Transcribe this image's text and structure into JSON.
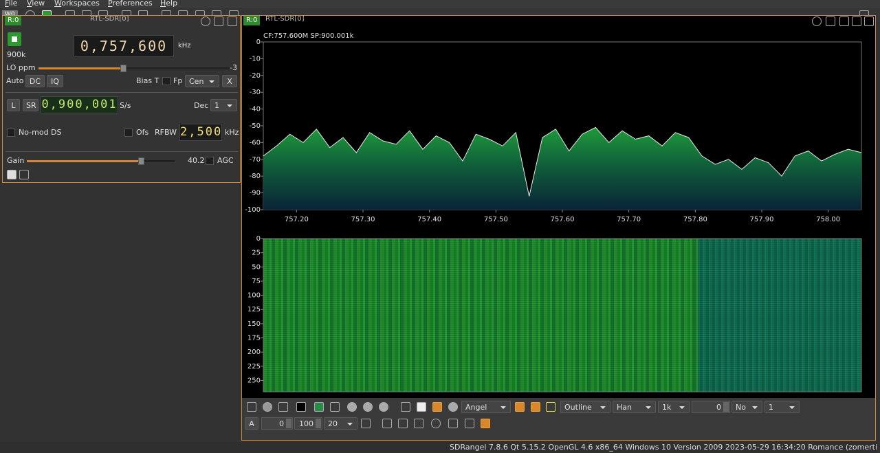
{
  "menu": [
    "File",
    "View",
    "Workspaces",
    "Preferences",
    "Help"
  ],
  "toolbar": {
    "workspace": "W0"
  },
  "device_panel": {
    "tab": "R:0",
    "title": "RTL-SDR[0]",
    "center_frequency": "0,757,600",
    "frequency_unit": "kHz",
    "sample_rate_short": "900k",
    "lo_ppm_label": "LO ppm",
    "lo_ppm": -3,
    "auto": "Auto",
    "dc": "DC",
    "iq": "IQ",
    "bias_t": "Bias T",
    "fp": "Fp",
    "fp_position": "Cen",
    "close": "X",
    "low_sr": "L",
    "sr": "SR",
    "sample_rate": "0,900,001",
    "sample_rate_unit": "S/s",
    "dec_label": "Dec",
    "dec": 1,
    "no_mod": "No-mod DS",
    "ofs": "Ofs",
    "rfbw_label": "RFBW",
    "rfbw": "2,500",
    "rfbw_unit": "kHz",
    "gain_label": "Gain",
    "gain": 40.2,
    "agc": "AGC"
  },
  "spectrum_window": {
    "tab": "R:0",
    "title": "RTL-SDR[0]",
    "spectrum": {
      "info": "CF:757.600M SP:900.001k",
      "xlim": [
        757.15,
        758.05
      ],
      "xticks": [
        {
          "value": 757.2,
          "label": "757.20"
        },
        {
          "value": 757.3,
          "label": "757.30"
        },
        {
          "value": 757.4,
          "label": "757.40"
        },
        {
          "value": 757.5,
          "label": "757.50"
        },
        {
          "value": 757.6,
          "label": "757.60"
        },
        {
          "value": 757.7,
          "label": "757.70"
        },
        {
          "value": 757.8,
          "label": "757.80"
        },
        {
          "value": 757.9,
          "label": "757.90"
        },
        {
          "value": 758.0,
          "label": "758.00"
        }
      ],
      "ylim": [
        -100,
        0
      ],
      "yticks": [
        0,
        -10,
        -20,
        -30,
        -40,
        -50,
        -60,
        -70,
        -80,
        -90,
        -100
      ],
      "trace": {
        "color": "#e8e8e8",
        "x": [
          757.15,
          757.17,
          757.19,
          757.21,
          757.23,
          757.25,
          757.27,
          757.29,
          757.31,
          757.33,
          757.35,
          757.37,
          757.39,
          757.41,
          757.43,
          757.45,
          757.47,
          757.49,
          757.51,
          757.53,
          757.55,
          757.57,
          757.59,
          757.61,
          757.63,
          757.65,
          757.67,
          757.69,
          757.71,
          757.73,
          757.75,
          757.77,
          757.79,
          757.81,
          757.83,
          757.85,
          757.87,
          757.89,
          757.91,
          757.93,
          757.95,
          757.97,
          757.99,
          758.01,
          758.03,
          758.05
        ],
        "y": [
          -68,
          -62,
          -55,
          -60,
          -52,
          -63,
          -57,
          -66,
          -54,
          -59,
          -61,
          -53,
          -64,
          -56,
          -60,
          -71,
          -55,
          -58,
          -62,
          -54,
          -92,
          -57,
          -52,
          -65,
          -55,
          -51,
          -60,
          -53,
          -58,
          -56,
          -62,
          -54,
          -57,
          -68,
          -73,
          -70,
          -76,
          -69,
          -72,
          -80,
          -68,
          -65,
          -71,
          -67,
          -64,
          -66
        ]
      }
    },
    "waterfall": {
      "ylim": [
        0,
        270
      ],
      "yticks": [
        0,
        25,
        50,
        75,
        100,
        125,
        150,
        175,
        200,
        225,
        250
      ]
    },
    "controls": {
      "palette": "Angel",
      "trace_mode": "Outline",
      "window": "Han",
      "fft_size": "1k",
      "fft_overlap": 0,
      "averaging_mode": "No",
      "averaging": 1,
      "auto_scale": "A",
      "ref_level": 0,
      "range": 100,
      "fps": 20
    }
  },
  "status_bar": "SDRangel 7.8.6 Qt 5.15.2 OpenGL 4.6 x86_64 Windows 10 Version 2009  2023-05-29 16:34:20 Romance (zomerti"
}
